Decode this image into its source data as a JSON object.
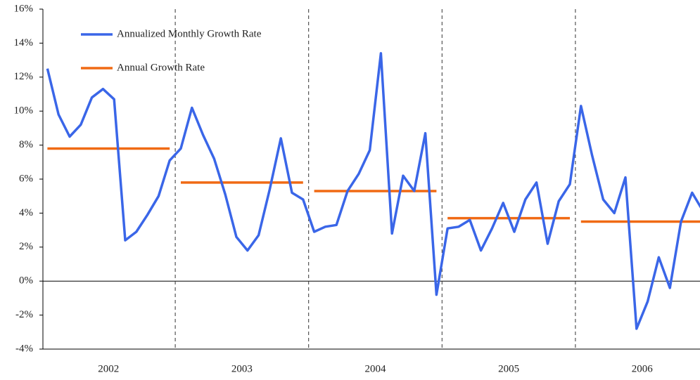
{
  "chart_data": {
    "type": "line",
    "categories": [
      "2002",
      "2003",
      "2004",
      "2005",
      "2006"
    ],
    "series": [
      {
        "name": "Annualized Monthly Growth Rate",
        "color": "#3a66e8",
        "values": [
          [
            12.5,
            9.8,
            8.5,
            9.2,
            10.8,
            11.3,
            10.7,
            2.4,
            2.9,
            3.9,
            5.0,
            7.1
          ],
          [
            7.8,
            10.2,
            8.6,
            7.2,
            5.1,
            2.6,
            1.8,
            2.7,
            5.4,
            8.4,
            5.2,
            4.8
          ],
          [
            2.9,
            3.2,
            3.3,
            5.3,
            6.3,
            7.7,
            13.4,
            2.8,
            6.2,
            5.3,
            8.7,
            -0.8
          ],
          [
            3.1,
            3.2,
            3.6,
            1.8,
            3.1,
            4.6,
            2.9,
            4.8,
            5.8,
            2.2,
            4.7,
            5.7
          ],
          [
            10.3,
            7.4,
            4.8,
            4.0,
            6.1,
            -2.8,
            -1.2,
            1.4,
            -0.4,
            3.5,
            5.2,
            4.1
          ]
        ]
      },
      {
        "name": "Annual Growth Rate",
        "color": "#f06a14",
        "values": [
          7.8,
          5.8,
          5.3,
          3.7,
          3.5
        ]
      }
    ],
    "ylim": [
      -4,
      16
    ],
    "yticks": [
      {
        "value": -4,
        "label": "-4%"
      },
      {
        "value": -2,
        "label": "-2%"
      },
      {
        "value": 0,
        "label": "0%"
      },
      {
        "value": 2,
        "label": "2%"
      },
      {
        "value": 4,
        "label": "4%"
      },
      {
        "value": 6,
        "label": "6%"
      },
      {
        "value": 8,
        "label": "8%"
      },
      {
        "value": 10,
        "label": "10%"
      },
      {
        "value": 12,
        "label": "12%"
      },
      {
        "value": 14,
        "label": "14%"
      },
      {
        "value": 16,
        "label": "16%"
      }
    ],
    "legend": "upper left"
  }
}
